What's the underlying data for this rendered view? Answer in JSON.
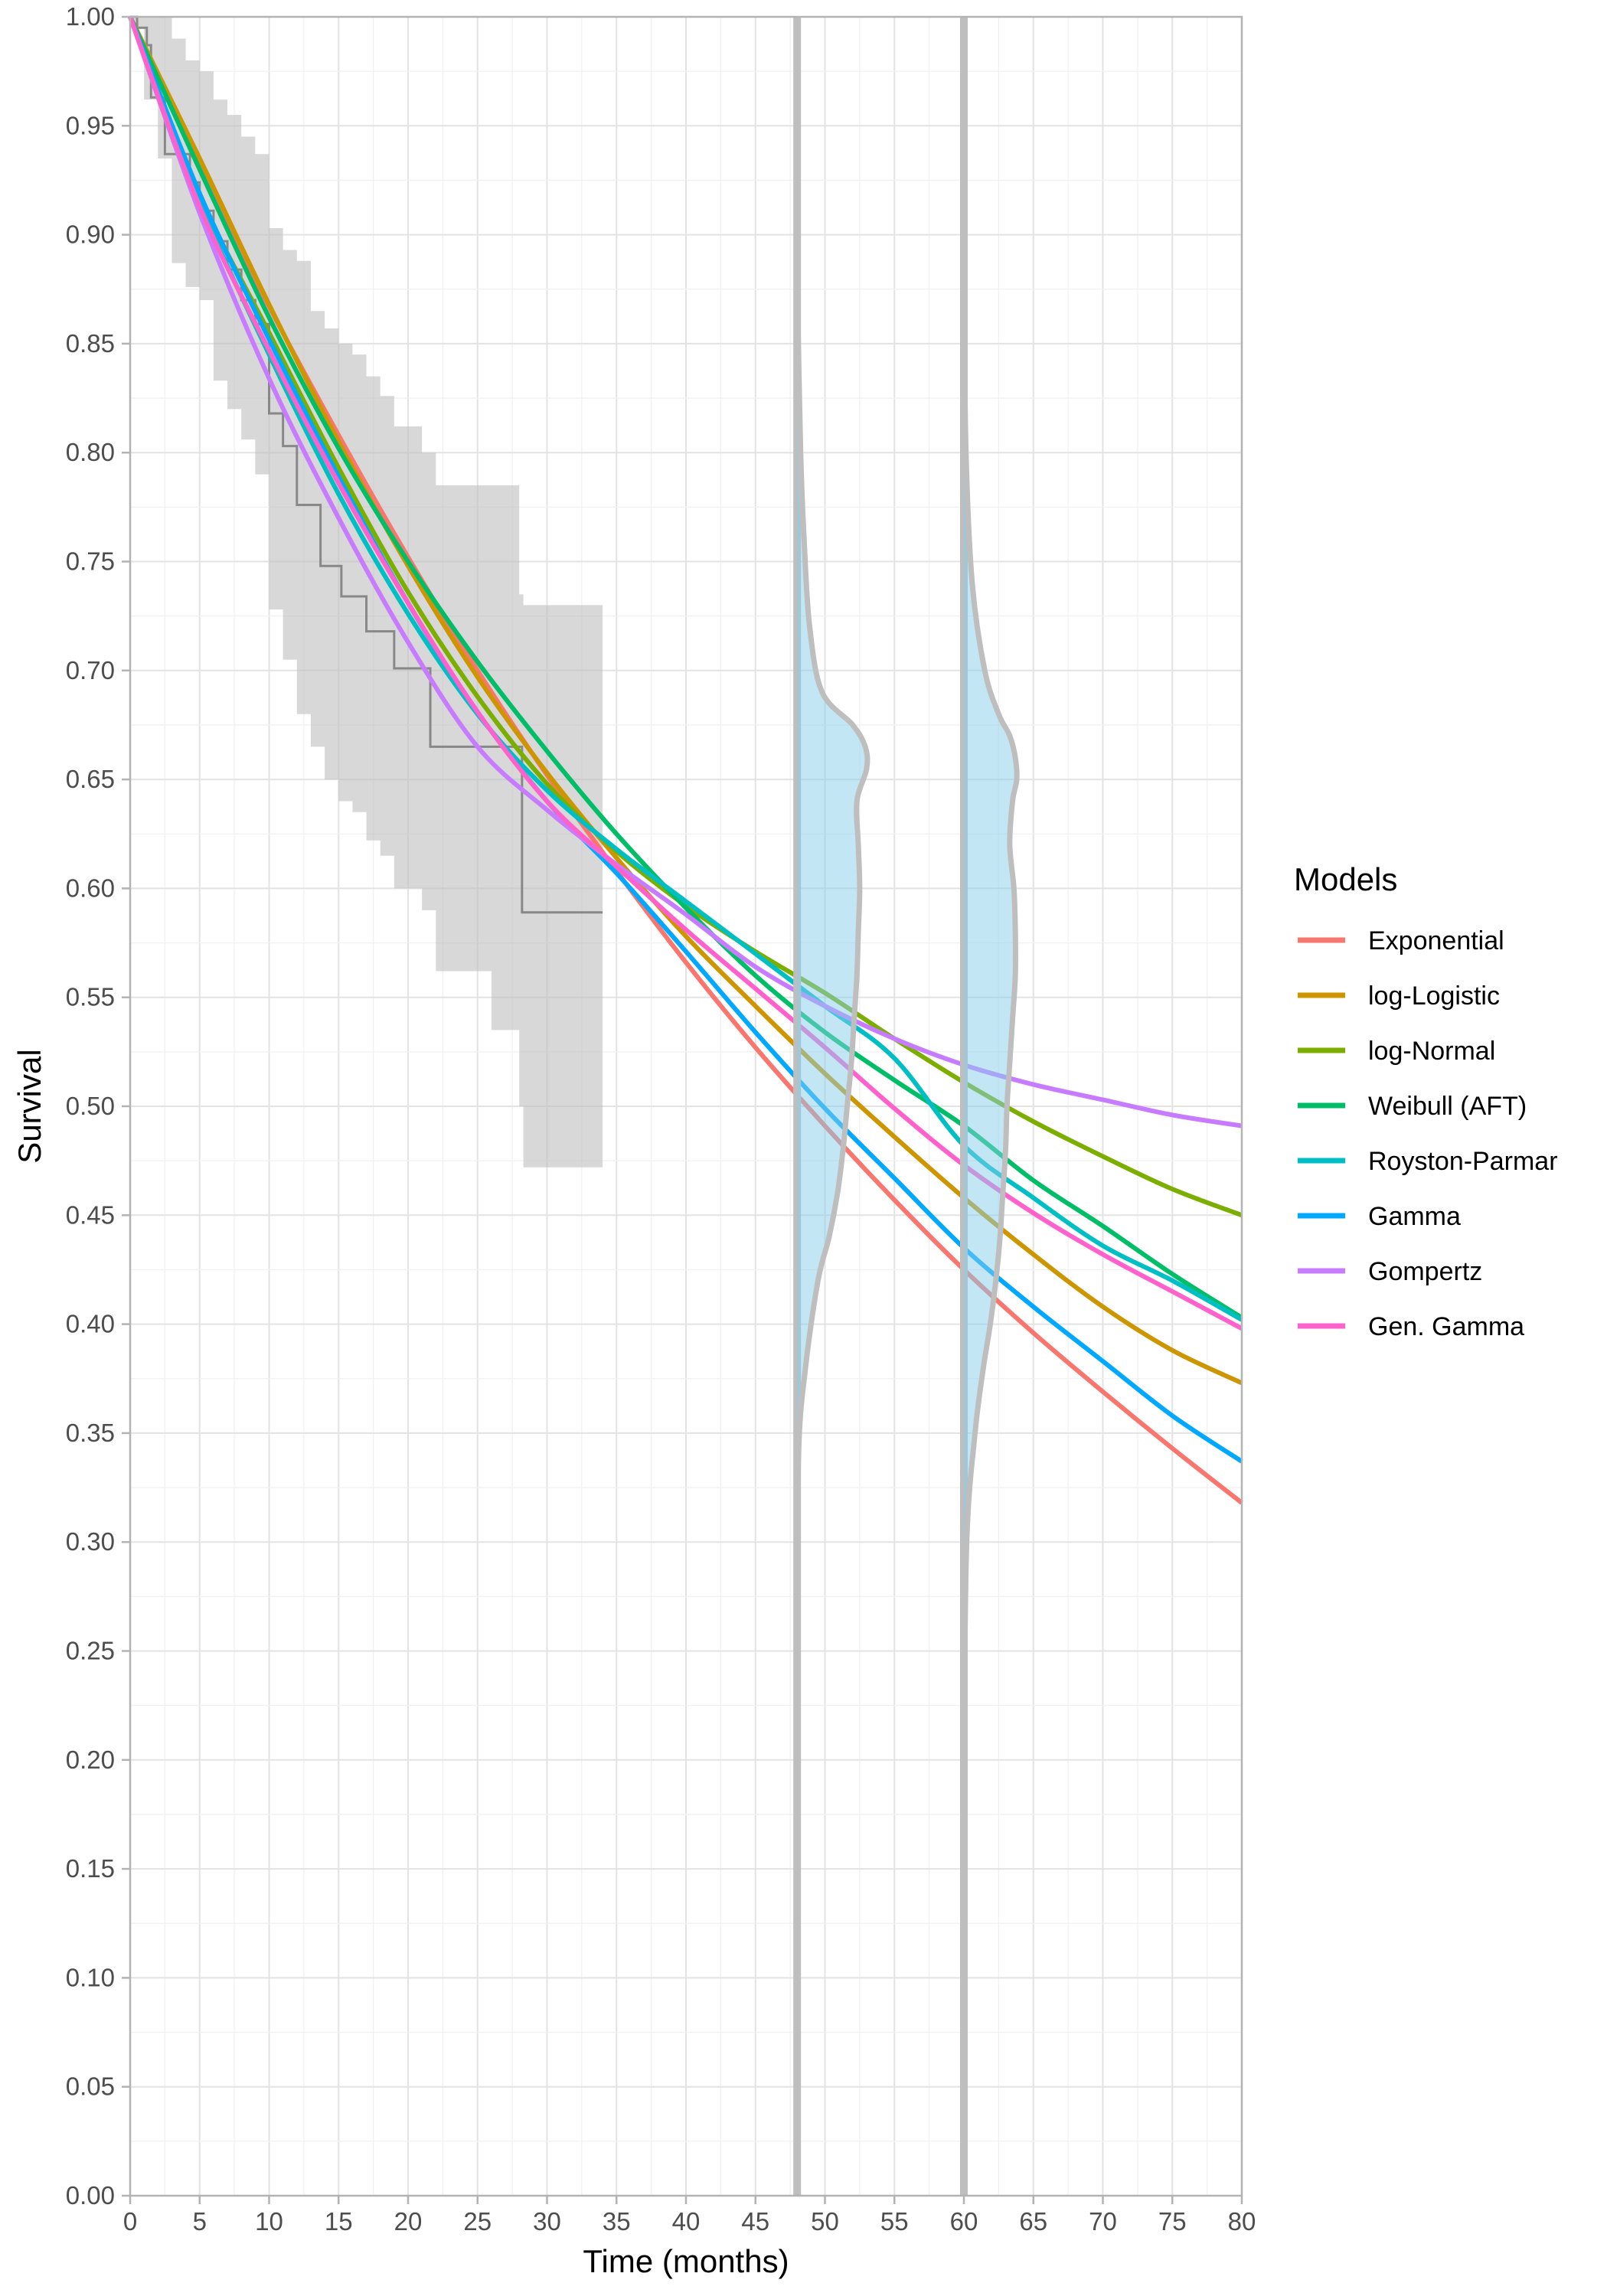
{
  "chart_data": {
    "type": "line",
    "xlabel": "Time (months)",
    "ylabel": "Survival",
    "xlim": [
      0,
      80
    ],
    "ylim": [
      0,
      1
    ],
    "x_ticks": [
      "0",
      "5",
      "10",
      "15",
      "20",
      "25",
      "30",
      "35",
      "40",
      "45",
      "50",
      "55",
      "60",
      "65",
      "70",
      "75",
      "80"
    ],
    "y_ticks": [
      "0.00",
      "0.05",
      "0.10",
      "0.15",
      "0.20",
      "0.25",
      "0.30",
      "0.35",
      "0.40",
      "0.45",
      "0.50",
      "0.55",
      "0.60",
      "0.65",
      "0.70",
      "0.75",
      "0.80",
      "0.85",
      "0.90",
      "0.95",
      "1.00"
    ],
    "grid": true,
    "legend_position": "right",
    "legend_title": "Models",
    "series": [
      {
        "name": "Exponential",
        "color": "#F8766D",
        "x": [
          0,
          5,
          10,
          15,
          20,
          25,
          30,
          35,
          40,
          45,
          50,
          55,
          60,
          65,
          70,
          75,
          80
        ],
        "y": [
          1.0,
          0.931,
          0.867,
          0.808,
          0.752,
          0.7,
          0.652,
          0.608,
          0.566,
          0.527,
          0.491,
          0.457,
          0.425,
          0.396,
          0.369,
          0.343,
          0.318
        ]
      },
      {
        "name": "log-Logistic",
        "color": "#CD9600",
        "x": [
          0,
          5,
          10,
          15,
          20,
          25,
          30,
          35,
          40,
          45,
          50,
          55,
          60,
          65,
          70,
          75,
          80
        ],
        "y": [
          1.0,
          0.935,
          0.868,
          0.805,
          0.748,
          0.697,
          0.653,
          0.614,
          0.578,
          0.546,
          0.515,
          0.486,
          0.458,
          0.432,
          0.408,
          0.388,
          0.373
        ]
      },
      {
        "name": "log-Normal",
        "color": "#7CAE00",
        "x": [
          0,
          5,
          10,
          15,
          20,
          25,
          30,
          35,
          40,
          45,
          50,
          55,
          60,
          65,
          70,
          75,
          80
        ],
        "y": [
          1.0,
          0.918,
          0.855,
          0.793,
          0.736,
          0.688,
          0.648,
          0.617,
          0.592,
          0.571,
          0.552,
          0.531,
          0.511,
          0.493,
          0.477,
          0.462,
          0.45
        ]
      },
      {
        "name": "Weibull (AFT)",
        "color": "#00BE67",
        "x": [
          0,
          5,
          10,
          15,
          20,
          25,
          30,
          35,
          40,
          45,
          50,
          55,
          60,
          65,
          70,
          75,
          80
        ],
        "y": [
          1.0,
          0.93,
          0.862,
          0.802,
          0.75,
          0.704,
          0.663,
          0.625,
          0.591,
          0.56,
          0.534,
          0.512,
          0.491,
          0.466,
          0.445,
          0.423,
          0.403
        ]
      },
      {
        "name": "Royston-Parmar",
        "color": "#00BFC4",
        "x": [
          0,
          5,
          10,
          15,
          20,
          25,
          30,
          35,
          40,
          45,
          50,
          55,
          60,
          65,
          70,
          75,
          80
        ],
        "y": [
          1.0,
          0.915,
          0.845,
          0.781,
          0.726,
          0.68,
          0.645,
          0.618,
          0.594,
          0.57,
          0.546,
          0.522,
          0.482,
          0.458,
          0.436,
          0.42,
          0.402
        ]
      },
      {
        "name": "Gamma",
        "color": "#00A9FF",
        "x": [
          0,
          5,
          10,
          15,
          20,
          25,
          30,
          35,
          40,
          45,
          50,
          55,
          60,
          65,
          70,
          75,
          80
        ],
        "y": [
          1.0,
          0.919,
          0.852,
          0.789,
          0.731,
          0.681,
          0.64,
          0.607,
          0.571,
          0.534,
          0.499,
          0.467,
          0.435,
          0.408,
          0.383,
          0.358,
          0.337
        ]
      },
      {
        "name": "Gompertz",
        "color": "#C77CFF",
        "x": [
          0,
          5,
          10,
          15,
          20,
          25,
          30,
          35,
          40,
          45,
          50,
          55,
          60,
          65,
          70,
          75,
          80
        ],
        "y": [
          1.0,
          0.91,
          0.834,
          0.77,
          0.713,
          0.665,
          0.636,
          0.611,
          0.588,
          0.564,
          0.546,
          0.531,
          0.519,
          0.51,
          0.503,
          0.496,
          0.491
        ]
      },
      {
        "name": "Gen. Gamma",
        "color": "#FF61CC",
        "x": [
          0,
          5,
          10,
          15,
          20,
          25,
          30,
          35,
          40,
          45,
          50,
          55,
          60,
          65,
          70,
          75,
          80
        ],
        "y": [
          1.0,
          0.913,
          0.847,
          0.786,
          0.731,
          0.681,
          0.64,
          0.61,
          0.581,
          0.554,
          0.527,
          0.499,
          0.473,
          0.451,
          0.432,
          0.415,
          0.398
        ]
      }
    ],
    "kaplan_meier": {
      "color": "#888888",
      "x": [
        0,
        0.5,
        1.2,
        1.5,
        2.5,
        3.5,
        4.3,
        5.0,
        6.0,
        7.0,
        8.0,
        9.0,
        10.0,
        11.0,
        12.0,
        13.7,
        15.2,
        17.0,
        19.0,
        21.6,
        28.2,
        34.0
      ],
      "y": [
        1.0,
        0.995,
        0.987,
        0.963,
        0.937,
        0.937,
        0.924,
        0.911,
        0.897,
        0.884,
        0.87,
        0.859,
        0.818,
        0.803,
        0.776,
        0.748,
        0.734,
        0.718,
        0.701,
        0.665,
        0.589,
        0.589
      ]
    },
    "confidence_band": {
      "color": "#BEBEBE",
      "x": [
        0,
        1,
        2,
        3,
        4,
        5,
        6,
        7,
        8,
        9,
        10,
        11,
        12,
        13,
        14,
        15,
        16,
        17,
        18,
        19,
        20,
        21,
        22,
        24,
        26,
        28,
        28.3,
        30,
        32,
        34
      ],
      "lower": [
        0.995,
        0.962,
        0.935,
        0.887,
        0.876,
        0.87,
        0.833,
        0.82,
        0.806,
        0.79,
        0.728,
        0.705,
        0.68,
        0.665,
        0.65,
        0.64,
        0.635,
        0.622,
        0.615,
        0.6,
        0.6,
        0.59,
        0.562,
        0.562,
        0.535,
        0.5,
        0.472,
        0.472,
        0.472,
        0.472
      ],
      "upper": [
        1.0,
        1.0,
        1.0,
        0.99,
        0.98,
        0.975,
        0.962,
        0.955,
        0.945,
        0.937,
        0.903,
        0.893,
        0.888,
        0.865,
        0.857,
        0.85,
        0.845,
        0.835,
        0.826,
        0.812,
        0.812,
        0.8,
        0.785,
        0.785,
        0.785,
        0.735,
        0.73,
        0.73,
        0.73,
        0.73
      ]
    },
    "distributions": [
      {
        "at_x": 48,
        "color": "#87CEEB",
        "outline": "#BEBEBE",
        "density_y": [
          0.25,
          0.34,
          0.38,
          0.42,
          0.44,
          0.46,
          0.48,
          0.5,
          0.52,
          0.54,
          0.56,
          0.58,
          0.6,
          0.62,
          0.64,
          0.655,
          0.665,
          0.675,
          0.69,
          0.72,
          0.76,
          0.8,
          0.88
        ],
        "density_w": [
          0.0,
          0.1,
          0.6,
          1.5,
          2.3,
          2.9,
          3.3,
          3.6,
          3.9,
          4.1,
          4.3,
          4.4,
          4.5,
          4.4,
          4.3,
          5.0,
          4.9,
          4.0,
          1.8,
          0.9,
          0.5,
          0.25,
          0.0
        ]
      },
      {
        "at_x": 60,
        "color": "#87CEEB",
        "outline": "#BEBEBE",
        "density_y": [
          0.2,
          0.3,
          0.35,
          0.38,
          0.4,
          0.42,
          0.44,
          0.46,
          0.48,
          0.5,
          0.52,
          0.54,
          0.56,
          0.58,
          0.6,
          0.62,
          0.64,
          0.65,
          0.66,
          0.67,
          0.68,
          0.7,
          0.74,
          0.8,
          0.88
        ],
        "density_w": [
          0.0,
          0.2,
          0.8,
          1.4,
          1.9,
          2.3,
          2.6,
          2.8,
          3.0,
          3.1,
          3.3,
          3.5,
          3.7,
          3.7,
          3.6,
          3.3,
          3.5,
          3.8,
          3.7,
          3.3,
          2.5,
          1.5,
          0.6,
          0.15,
          0.0
        ]
      }
    ]
  }
}
